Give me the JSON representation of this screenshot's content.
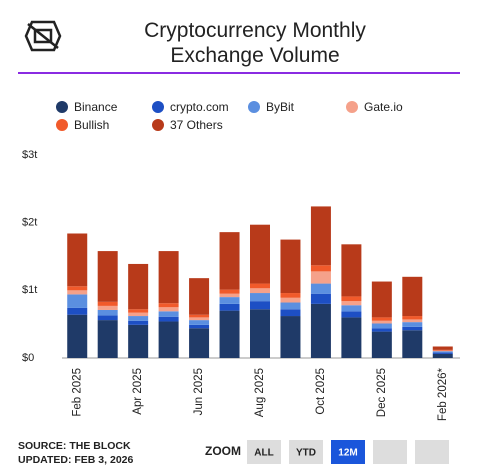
{
  "chart_data": {
    "type": "stacked_bar",
    "title": "Cryptocurrency Monthly Exchange Volume",
    "categories": [
      "Feb 2025",
      null,
      "Apr 2025",
      null,
      "Jun 2025",
      null,
      "Aug 2025",
      null,
      "Oct 2025",
      null,
      "Dec 2025",
      null,
      "Feb 2026*"
    ],
    "series": [
      {
        "name": "Binance",
        "color": "#1f3a68",
        "values": [
          0.64,
          0.56,
          0.49,
          0.54,
          0.44,
          0.7,
          0.72,
          0.62,
          0.8,
          0.6,
          0.39,
          0.41,
          0.06
        ]
      },
      {
        "name": "crypto.com",
        "color": "#1d4fc4",
        "values": [
          0.1,
          0.07,
          0.06,
          0.07,
          0.05,
          0.1,
          0.12,
          0.1,
          0.15,
          0.09,
          0.05,
          0.05,
          0.02
        ]
      },
      {
        "name": "ByBit",
        "color": "#5b8fe0",
        "values": [
          0.2,
          0.08,
          0.07,
          0.08,
          0.07,
          0.1,
          0.12,
          0.1,
          0.15,
          0.09,
          0.07,
          0.07,
          0.02
        ]
      },
      {
        "name": "Gate.io",
        "color": "#f5a18a",
        "values": [
          0.06,
          0.06,
          0.05,
          0.06,
          0.04,
          0.05,
          0.07,
          0.07,
          0.18,
          0.06,
          0.04,
          0.04,
          0.01
        ]
      },
      {
        "name": "Bullish",
        "color": "#f15a2b",
        "values": [
          0.06,
          0.06,
          0.05,
          0.06,
          0.04,
          0.06,
          0.07,
          0.07,
          0.09,
          0.07,
          0.05,
          0.05,
          0.01
        ]
      },
      {
        "name": "37 Others",
        "color": "#b83a1a",
        "values": [
          0.78,
          0.75,
          0.67,
          0.77,
          0.54,
          0.85,
          0.87,
          0.79,
          0.87,
          0.77,
          0.53,
          0.58,
          0.05
        ]
      }
    ],
    "ylim": [
      0,
      3
    ],
    "yticks": [
      {
        "value": 0,
        "label": "$0"
      },
      {
        "value": 1,
        "label": "$1t"
      },
      {
        "value": 2,
        "label": "$2t"
      },
      {
        "value": 3,
        "label": "$3t"
      }
    ],
    "grid": false,
    "source": "SOURCE: THE BLOCK",
    "updated": "UPDATED: FEB 3, 2026",
    "zoom_label": "ZOOM",
    "zoom_buttons": [
      "ALL",
      "YTD",
      "12M"
    ],
    "zoom_active": 2
  }
}
